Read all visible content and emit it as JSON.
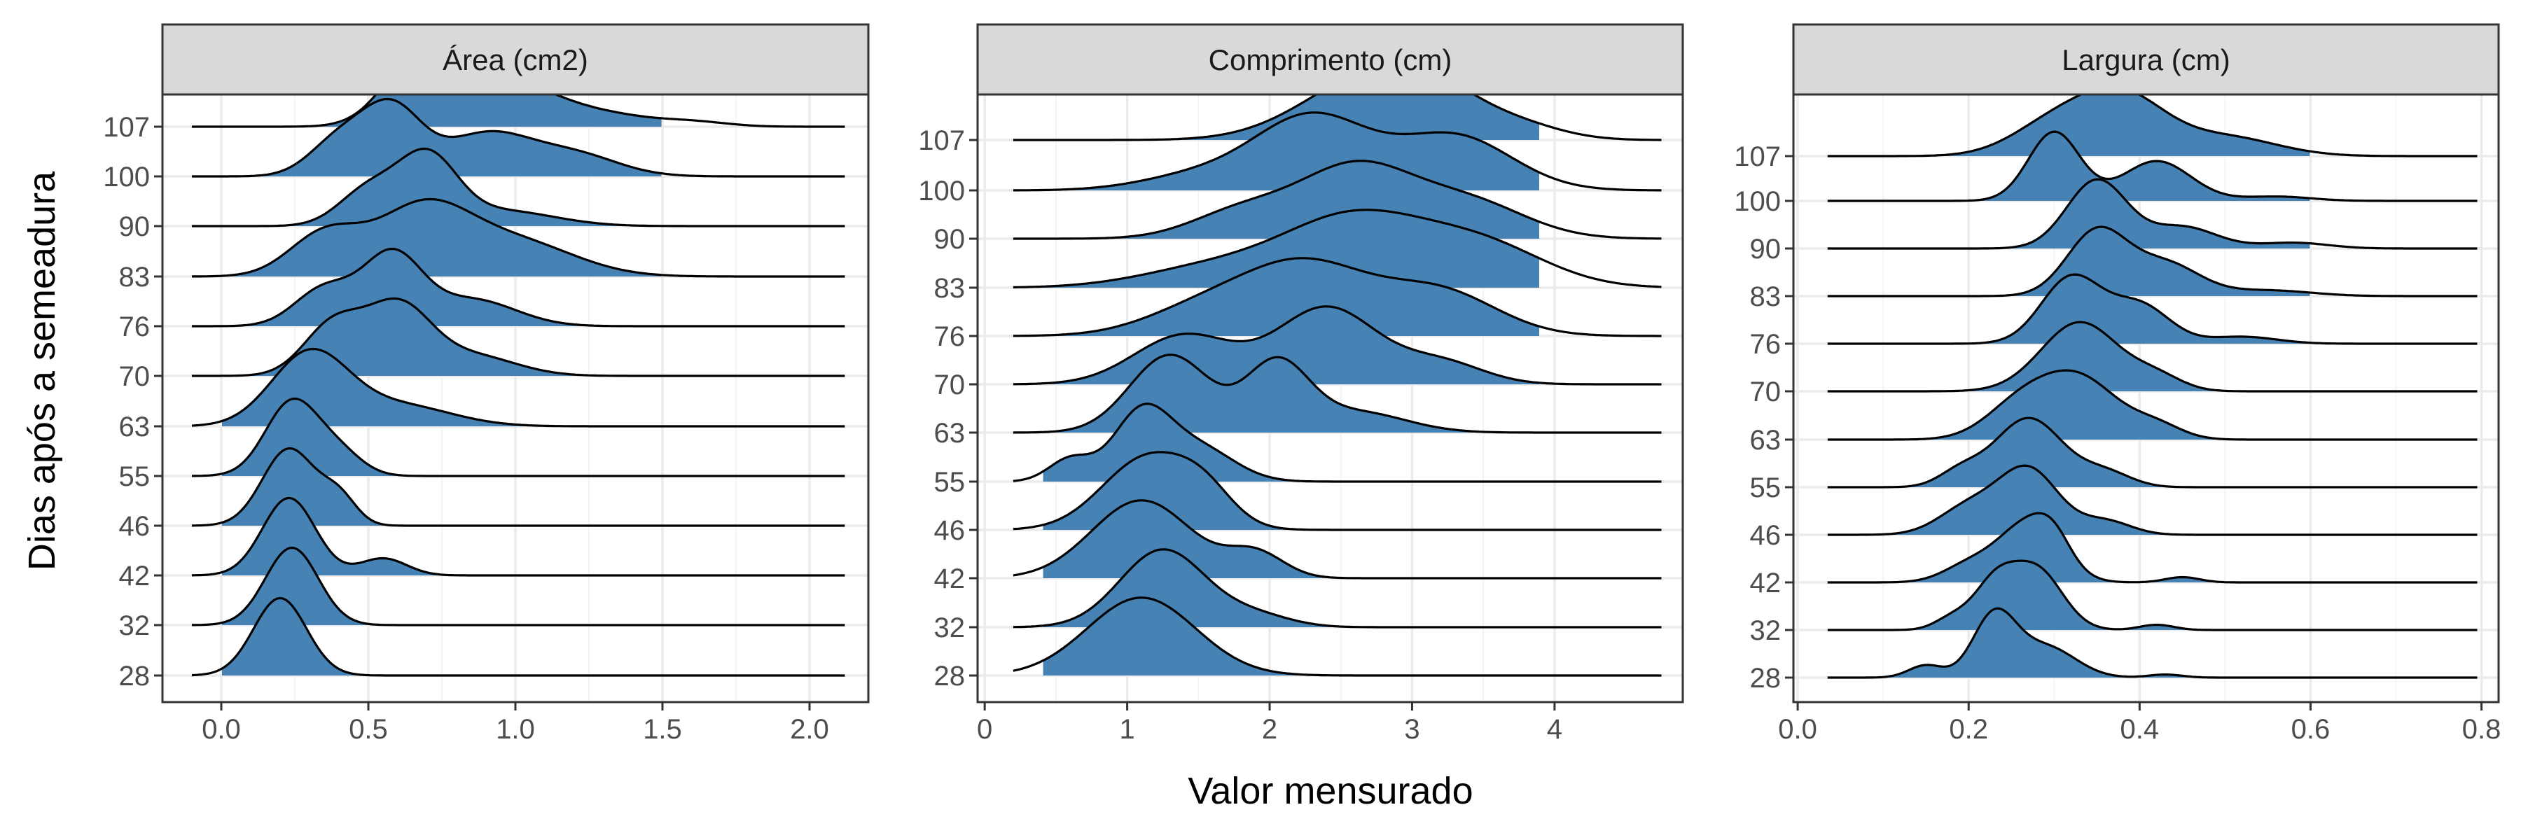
{
  "chart_data": {
    "type": "ridgeline",
    "ylabel": "Dias após a semeadura",
    "xlabel": "Valor mensurado",
    "categories": [
      "28",
      "32",
      "42",
      "46",
      "55",
      "63",
      "70",
      "76",
      "83",
      "90",
      "100",
      "107"
    ],
    "fill_color": "#4682b4",
    "line_color": "#000000",
    "grid": true,
    "panels": [
      {
        "title": "Área (cm2)",
        "xlim": [
          -0.2,
          2.2
        ],
        "xticks": [
          0.0,
          0.5,
          1.0,
          1.5,
          2.0
        ],
        "xtick_labels": [
          "0.0",
          "0.5",
          "1.0",
          "1.5",
          "2.0"
        ],
        "range": [
          -0.1,
          2.12
        ],
        "scale": 1.55,
        "fill_range": [
          0.0,
          1.5
        ],
        "series": [
          {
            "name": "28",
            "peaks": [
              [
                0.2,
                0.09,
                1.0
              ]
            ]
          },
          {
            "name": "32",
            "peaks": [
              [
                0.24,
                0.09,
                1.0
              ]
            ]
          },
          {
            "name": "42",
            "peaks": [
              [
                0.23,
                0.09,
                1.0
              ],
              [
                0.55,
                0.08,
                0.22
              ]
            ]
          },
          {
            "name": "46",
            "peaks": [
              [
                0.23,
                0.09,
                1.0
              ],
              [
                0.4,
                0.06,
                0.35
              ]
            ]
          },
          {
            "name": "55",
            "peaks": [
              [
                0.24,
                0.09,
                1.0
              ],
              [
                0.4,
                0.08,
                0.3
              ]
            ]
          },
          {
            "name": "63",
            "peaks": [
              [
                0.3,
                0.13,
                0.85
              ],
              [
                0.6,
                0.18,
                0.25
              ]
            ]
          },
          {
            "name": "70",
            "peaks": [
              [
                0.38,
                0.1,
                0.45
              ],
              [
                0.6,
                0.11,
                0.6
              ],
              [
                0.85,
                0.15,
                0.18
              ]
            ]
          },
          {
            "name": "76",
            "peaks": [
              [
                0.35,
                0.1,
                0.35
              ],
              [
                0.58,
                0.1,
                0.65
              ],
              [
                0.85,
                0.15,
                0.25
              ]
            ]
          },
          {
            "name": "83",
            "peaks": [
              [
                0.35,
                0.12,
                0.3
              ],
              [
                0.68,
                0.16,
                0.48
              ],
              [
                1.0,
                0.2,
                0.25
              ]
            ]
          },
          {
            "name": "90",
            "peaks": [
              [
                0.5,
                0.1,
                0.35
              ],
              [
                0.7,
                0.1,
                0.65
              ],
              [
                0.95,
                0.18,
                0.15
              ]
            ]
          },
          {
            "name": "100",
            "peaks": [
              [
                0.4,
                0.1,
                0.3
              ],
              [
                0.58,
                0.1,
                0.55
              ],
              [
                0.9,
                0.15,
                0.35
              ],
              [
                1.2,
                0.15,
                0.18
              ]
            ]
          },
          {
            "name": "107",
            "peaks": [
              [
                0.68,
                0.12,
                0.75
              ],
              [
                1.0,
                0.15,
                0.4
              ],
              [
                1.3,
                0.15,
                0.12
              ],
              [
                1.6,
                0.12,
                0.05
              ]
            ]
          }
        ]
      },
      {
        "title": "Comprimento (cm)",
        "xlim": [
          -0.05,
          4.9
        ],
        "xticks": [
          0,
          1,
          2,
          3,
          4
        ],
        "xtick_labels": [
          "0",
          "1",
          "2",
          "3",
          "4"
        ],
        "range": [
          0.2,
          4.75
        ],
        "scale": 1.6,
        "fill_range": [
          0.4,
          3.9
        ],
        "series": [
          {
            "name": "28",
            "peaks": [
              [
                1.1,
                0.38,
                1.0
              ]
            ]
          },
          {
            "name": "32",
            "peaks": [
              [
                1.25,
                0.3,
                1.0
              ],
              [
                1.9,
                0.25,
                0.15
              ]
            ]
          },
          {
            "name": "42",
            "peaks": [
              [
                1.1,
                0.35,
                0.95
              ],
              [
                1.9,
                0.2,
                0.3
              ]
            ]
          },
          {
            "name": "46",
            "peaks": [
              [
                1.15,
                0.32,
                1.0
              ],
              [
                1.55,
                0.2,
                0.35
              ]
            ]
          },
          {
            "name": "55",
            "peaks": [
              [
                0.6,
                0.15,
                0.3
              ],
              [
                1.1,
                0.2,
                0.9
              ],
              [
                1.5,
                0.25,
                0.45
              ]
            ]
          },
          {
            "name": "63",
            "peaks": [
              [
                1.3,
                0.28,
                0.75
              ],
              [
                2.05,
                0.22,
                0.65
              ],
              [
                2.6,
                0.35,
                0.2
              ]
            ]
          },
          {
            "name": "70",
            "peaks": [
              [
                1.4,
                0.35,
                0.45
              ],
              [
                2.4,
                0.35,
                0.7
              ],
              [
                3.2,
                0.3,
                0.2
              ]
            ]
          },
          {
            "name": "76",
            "peaks": [
              [
                1.5,
                0.4,
                0.25
              ],
              [
                2.25,
                0.45,
                0.75
              ],
              [
                3.2,
                0.4,
                0.45
              ]
            ]
          },
          {
            "name": "83",
            "peaks": [
              [
                1.6,
                0.5,
                0.2
              ],
              [
                2.6,
                0.5,
                0.7
              ],
              [
                3.5,
                0.45,
                0.4
              ]
            ]
          },
          {
            "name": "90",
            "peaks": [
              [
                1.8,
                0.35,
                0.3
              ],
              [
                2.6,
                0.4,
                0.8
              ],
              [
                3.4,
                0.4,
                0.4
              ]
            ]
          },
          {
            "name": "100",
            "peaks": [
              [
                1.5,
                0.4,
                0.15
              ],
              [
                2.3,
                0.4,
                0.75
              ],
              [
                3.3,
                0.4,
                0.55
              ]
            ]
          },
          {
            "name": "107",
            "peaks": [
              [
                2.6,
                0.45,
                0.7
              ],
              [
                3.1,
                0.4,
                0.7
              ],
              [
                3.8,
                0.3,
                0.15
              ]
            ]
          }
        ]
      },
      {
        "title": "Largura (cm)",
        "xlim": [
          -0.005,
          0.82
        ],
        "xticks": [
          0.0,
          0.2,
          0.4,
          0.6,
          0.8
        ],
        "xtick_labels": [
          "0.0",
          "0.2",
          "0.4",
          "0.6",
          "0.8"
        ],
        "range": [
          0.035,
          0.795
        ],
        "scale": 1.45,
        "fill_range": [
          0.1,
          0.6
        ],
        "series": [
          {
            "name": "28",
            "peaks": [
              [
                0.15,
                0.02,
                0.2
              ],
              [
                0.23,
                0.025,
                1.0
              ],
              [
                0.29,
                0.035,
                0.5
              ],
              [
                0.43,
                0.02,
                0.05
              ]
            ]
          },
          {
            "name": "32",
            "peaks": [
              [
                0.18,
                0.02,
                0.15
              ],
              [
                0.23,
                0.025,
                0.6
              ],
              [
                0.28,
                0.03,
                0.8
              ],
              [
                0.42,
                0.02,
                0.07
              ]
            ]
          },
          {
            "name": "42",
            "peaks": [
              [
                0.2,
                0.03,
                0.25
              ],
              [
                0.27,
                0.035,
                0.9
              ],
              [
                0.3,
                0.02,
                0.3
              ],
              [
                0.45,
                0.02,
                0.08
              ]
            ]
          },
          {
            "name": "46",
            "peaks": [
              [
                0.2,
                0.035,
                0.4
              ],
              [
                0.27,
                0.035,
                0.95
              ],
              [
                0.36,
                0.03,
                0.2
              ]
            ]
          },
          {
            "name": "55",
            "peaks": [
              [
                0.19,
                0.025,
                0.2
              ],
              [
                0.27,
                0.04,
                0.95
              ],
              [
                0.36,
                0.03,
                0.2
              ]
            ]
          },
          {
            "name": "63",
            "peaks": [
              [
                0.26,
                0.04,
                0.5
              ],
              [
                0.33,
                0.045,
                0.9
              ],
              [
                0.42,
                0.03,
                0.2
              ]
            ]
          },
          {
            "name": "70",
            "peaks": [
              [
                0.33,
                0.045,
                1.0
              ],
              [
                0.42,
                0.03,
                0.2
              ]
            ]
          },
          {
            "name": "76",
            "peaks": [
              [
                0.32,
                0.035,
                0.95
              ],
              [
                0.4,
                0.035,
                0.55
              ],
              [
                0.52,
                0.04,
                0.1
              ]
            ]
          },
          {
            "name": "83",
            "peaks": [
              [
                0.35,
                0.035,
                0.9
              ],
              [
                0.43,
                0.04,
                0.45
              ],
              [
                0.55,
                0.05,
                0.08
              ]
            ]
          },
          {
            "name": "90",
            "peaks": [
              [
                0.35,
                0.035,
                0.95
              ],
              [
                0.45,
                0.04,
                0.3
              ],
              [
                0.58,
                0.04,
                0.08
              ]
            ]
          },
          {
            "name": "100",
            "peaks": [
              [
                0.3,
                0.03,
                0.95
              ],
              [
                0.42,
                0.04,
                0.55
              ],
              [
                0.56,
                0.04,
                0.06
              ]
            ]
          },
          {
            "name": "107",
            "peaks": [
              [
                0.3,
                0.05,
                0.5
              ],
              [
                0.38,
                0.05,
                0.9
              ],
              [
                0.5,
                0.06,
                0.3
              ]
            ]
          }
        ]
      }
    ]
  }
}
